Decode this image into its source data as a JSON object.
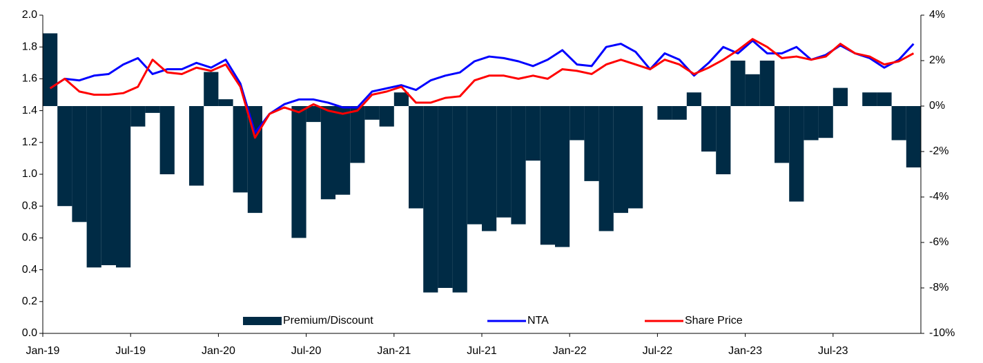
{
  "chart_data": {
    "type": "bar-line",
    "categories": [
      "Jan-19",
      null,
      null,
      null,
      null,
      null,
      "Jul-19",
      null,
      null,
      null,
      null,
      null,
      "Jan-20",
      null,
      null,
      null,
      null,
      null,
      "Jul-20",
      null,
      null,
      null,
      null,
      null,
      "Jan-21",
      null,
      null,
      null,
      null,
      null,
      "Jul-21",
      null,
      null,
      null,
      null,
      null,
      "Jan-22",
      null,
      null,
      null,
      null,
      null,
      "Jul-22",
      null,
      null,
      null,
      null,
      null,
      "Jan-23",
      null,
      null,
      null,
      null,
      null,
      "Jul-23",
      null,
      null,
      null,
      null,
      null
    ],
    "series": [
      {
        "name": "Premium/Discount",
        "type": "bar",
        "axis": "y2",
        "color": "#002b45",
        "values": [
          3.2,
          -4.4,
          -5.1,
          -7.1,
          -7.0,
          -7.1,
          -0.9,
          -0.3,
          -3.0,
          0,
          -3.5,
          1.5,
          0.3,
          -3.8,
          -4.7,
          0,
          0,
          -5.8,
          -0.7,
          -4.1,
          -3.9,
          -2.5,
          -0.6,
          -0.9,
          0.6,
          -4.5,
          -8.2,
          -8.0,
          -8.2,
          -5.2,
          -5.5,
          -4.9,
          -5.2,
          -2.4,
          -6.1,
          -6.2,
          -1.5,
          -3.3,
          -5.5,
          -4.7,
          -4.5,
          0,
          -0.6,
          -0.6,
          0.6,
          -2.0,
          -3.0,
          2.0,
          1.4,
          2.0,
          -2.5,
          -4.2,
          -1.5,
          -1.4,
          0.8,
          0,
          0.6,
          0.6,
          -1.5,
          -2.7
        ]
      },
      {
        "name": "NTA",
        "type": "line",
        "color": "#0000ff",
        "values": [
          1.54,
          1.6,
          1.59,
          1.62,
          1.63,
          1.69,
          1.73,
          1.63,
          1.66,
          1.66,
          1.7,
          1.67,
          1.72,
          1.57,
          1.26,
          1.38,
          1.44,
          1.47,
          1.47,
          1.45,
          1.42,
          1.42,
          1.52,
          1.54,
          1.56,
          1.53,
          1.59,
          1.62,
          1.64,
          1.71,
          1.74,
          1.73,
          1.71,
          1.68,
          1.72,
          1.78,
          1.69,
          1.68,
          1.8,
          1.82,
          1.77,
          1.66,
          1.76,
          1.72,
          1.62,
          1.7,
          1.8,
          1.76,
          1.84,
          1.76,
          1.76,
          1.8,
          1.72,
          1.75,
          1.81,
          1.76,
          1.73,
          1.67,
          1.72,
          1.82
        ]
      },
      {
        "name": "Share Price",
        "type": "line",
        "color": "#ff0000",
        "values": [
          1.54,
          1.6,
          1.52,
          1.5,
          1.5,
          1.51,
          1.55,
          1.72,
          1.64,
          1.63,
          1.67,
          1.65,
          1.69,
          1.55,
          1.23,
          1.38,
          1.42,
          1.39,
          1.44,
          1.4,
          1.38,
          1.4,
          1.5,
          1.52,
          1.55,
          1.45,
          1.45,
          1.48,
          1.49,
          1.59,
          1.62,
          1.62,
          1.6,
          1.62,
          1.6,
          1.66,
          1.65,
          1.63,
          1.69,
          1.72,
          1.69,
          1.66,
          1.72,
          1.69,
          1.63,
          1.67,
          1.72,
          1.78,
          1.85,
          1.8,
          1.73,
          1.74,
          1.72,
          1.74,
          1.82,
          1.76,
          1.74,
          1.69,
          1.71,
          1.76
        ]
      }
    ],
    "ylim": [
      0,
      2.0
    ],
    "yticks": [
      {
        "value": 0,
        "label": "0.0"
      },
      0.2,
      0.4,
      0.6,
      0.8,
      {
        "value": 1,
        "label": "1.0"
      },
      1.2,
      1.4,
      1.6,
      1.8,
      {
        "value": 2,
        "label": "2.0"
      }
    ],
    "y2lim": [
      -10,
      4
    ],
    "y2ticks": [
      {
        "value": -10,
        "label": "-10%"
      },
      {
        "value": -8,
        "label": "-8%"
      },
      {
        "value": -6,
        "label": "-6%"
      },
      {
        "value": -4,
        "label": "-4%"
      },
      {
        "value": -2,
        "label": "-2%"
      },
      {
        "value": 0,
        "label": "0%"
      },
      {
        "value": 2,
        "label": "2%"
      },
      {
        "value": 4,
        "label": "4%"
      }
    ],
    "legend": "bottom"
  }
}
